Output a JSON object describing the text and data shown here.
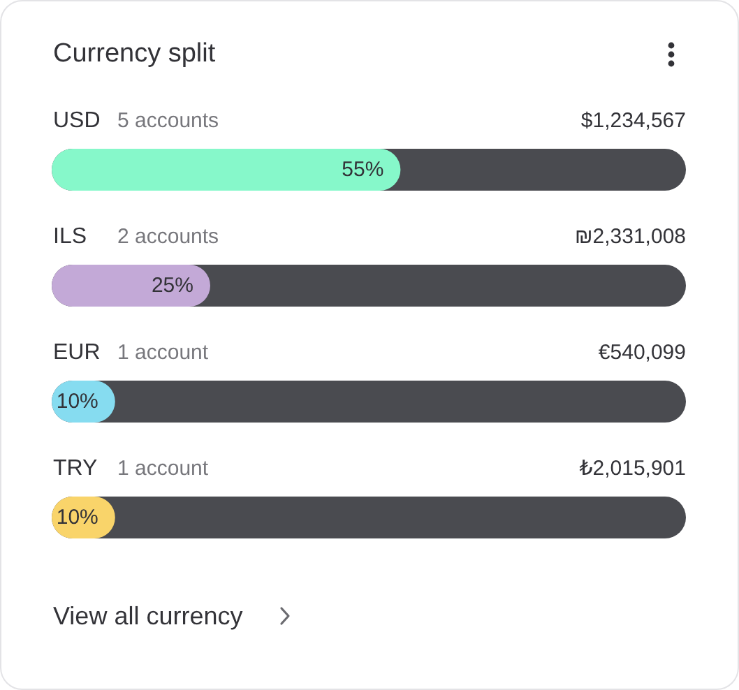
{
  "chart_data": {
    "type": "bar",
    "orientation": "horizontal",
    "title": "Currency split",
    "categories": [
      "USD",
      "ILS",
      "EUR",
      "TRY"
    ],
    "values": [
      55,
      25,
      10,
      10
    ],
    "colors": [
      "#86f8ca",
      "#c3a9d7",
      "#86dcf0",
      "#f9d46a"
    ],
    "value_labels": [
      "55%",
      "25%",
      "10%",
      "10%"
    ],
    "xlim": [
      0,
      100
    ],
    "tick_labels": "y",
    "annotations": [
      "5 accounts",
      "$1,234,567",
      "2 accounts",
      "₪2,331,008",
      "1 account",
      "€540,099",
      "1 account",
      "₺2,015,901",
      "View all currency"
    ]
  }
}
